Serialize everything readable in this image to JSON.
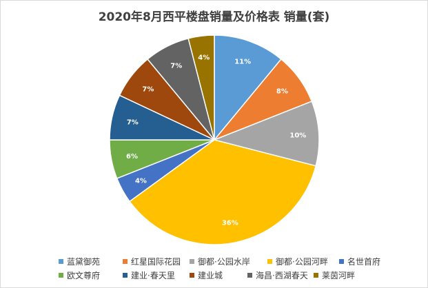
{
  "chart_data": {
    "type": "pie",
    "title": "2020年8月西平楼盘销量及价格表 销量(套)",
    "legend_position": "bottom",
    "slices": [
      {
        "label": "蓝黛御苑",
        "value": 11,
        "value_label": "11%",
        "color": "#5b9bd5"
      },
      {
        "label": "红星国际花园",
        "value": 8,
        "value_label": "8%",
        "color": "#ed7d31"
      },
      {
        "label": "御都·公园水岸",
        "value": 10,
        "value_label": "10%",
        "color": "#a5a5a5"
      },
      {
        "label": "御都·公园河畔",
        "value": 36,
        "value_label": "36%",
        "color": "#ffc000"
      },
      {
        "label": "名世首府",
        "value": 4,
        "value_label": "4%",
        "color": "#4472c4"
      },
      {
        "label": "欧文尊府",
        "value": 6,
        "value_label": "6%",
        "color": "#70ad47"
      },
      {
        "label": "建业·春天里",
        "value": 7,
        "value_label": "7%",
        "color": "#255e91"
      },
      {
        "label": "建业城",
        "value": 7,
        "value_label": "7%",
        "color": "#9e480e"
      },
      {
        "label": "海昌·西湖春天",
        "value": 7,
        "value_label": "7%",
        "color": "#636363"
      },
      {
        "label": "莱茵河畔",
        "value": 4,
        "value_label": "4%",
        "color": "#997300"
      }
    ]
  }
}
